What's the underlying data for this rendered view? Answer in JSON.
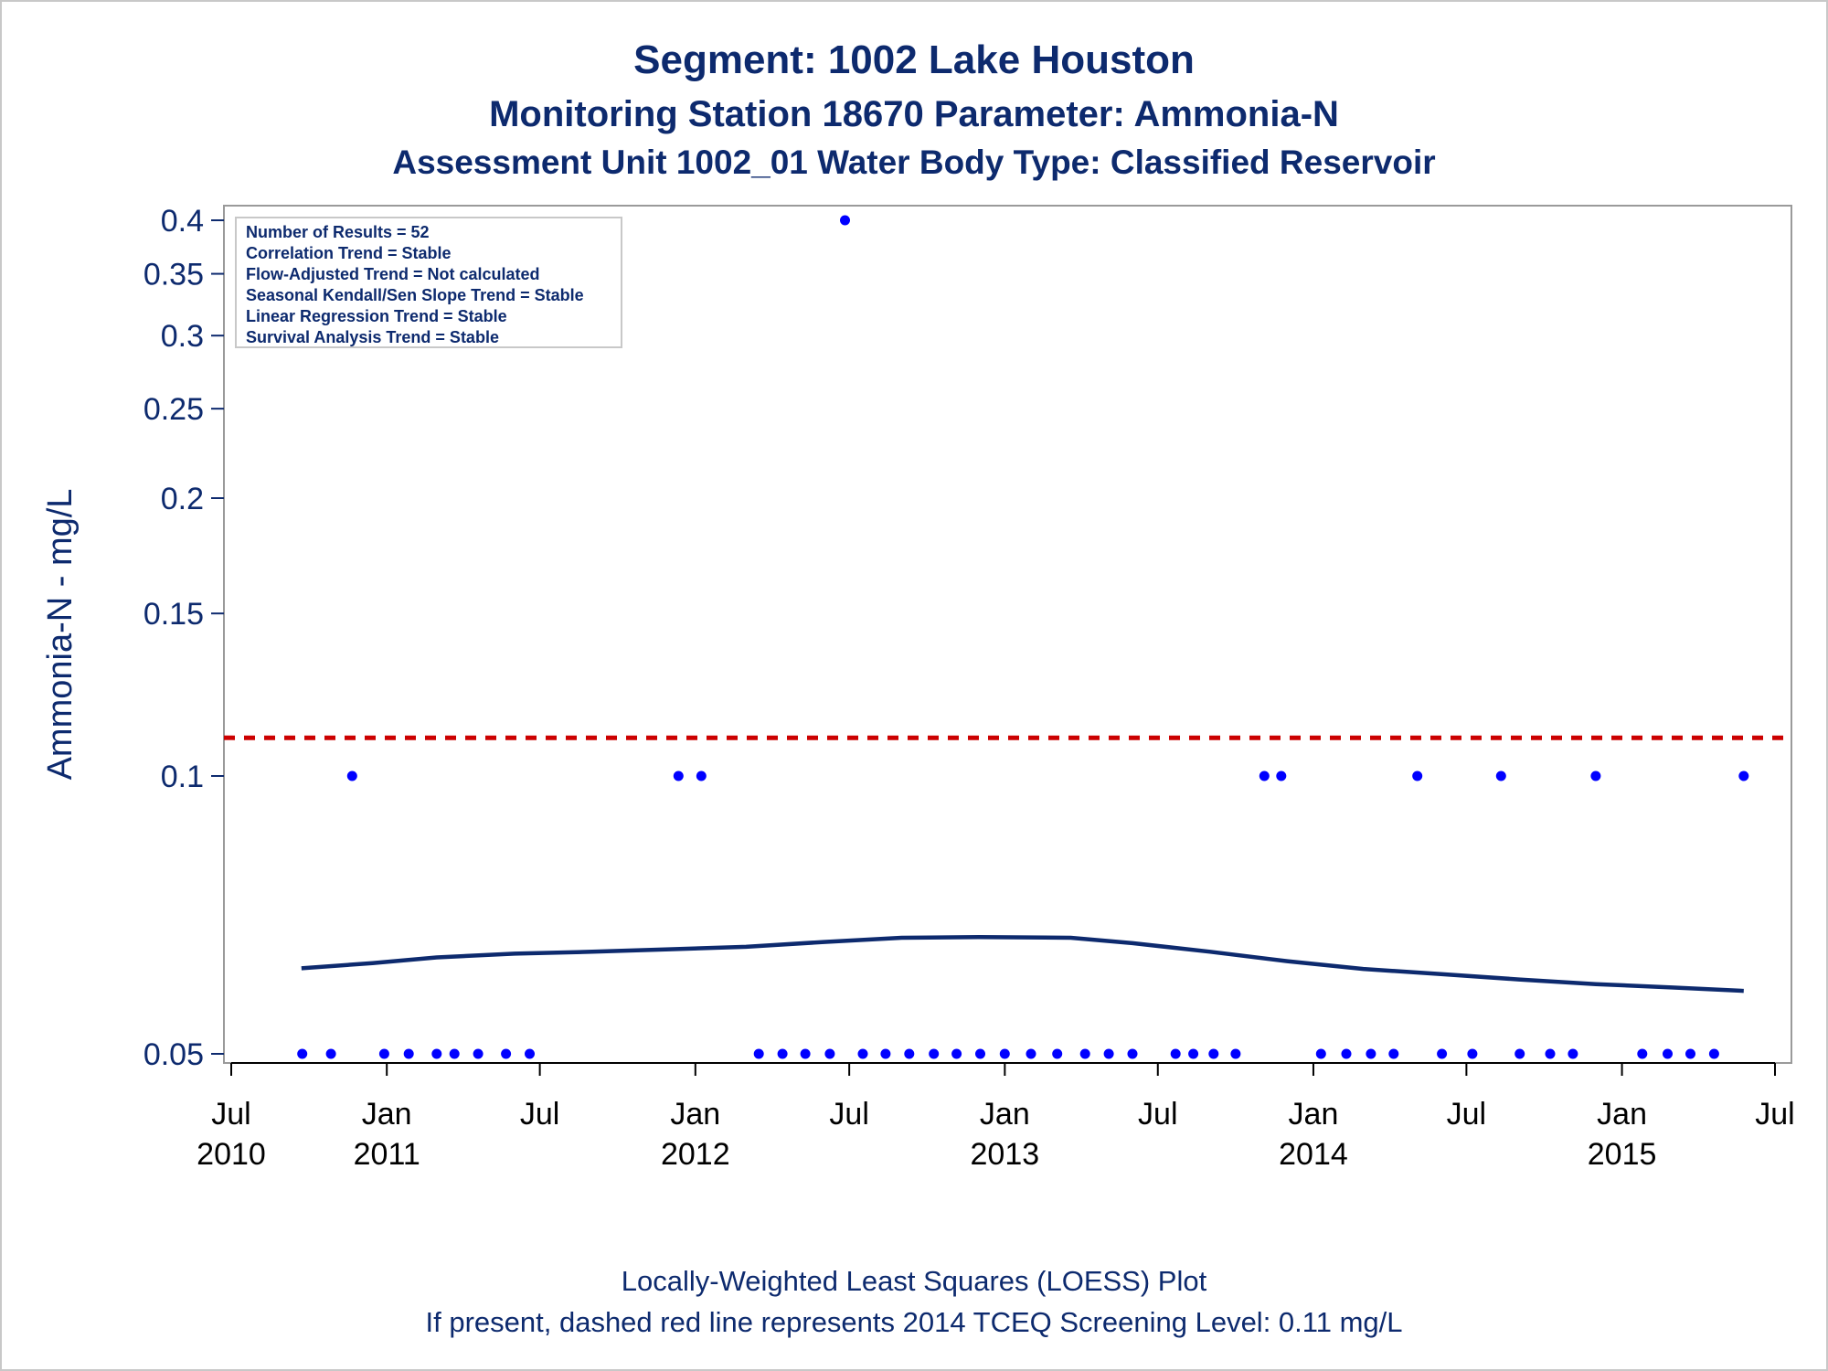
{
  "titles": {
    "line1": "Segment: 1002  Lake Houston",
    "line2": "Monitoring Station 18670 Parameter: Ammonia-N",
    "line3": "Assessment Unit 1002_01   Water Body Type: Classified Reservoir"
  },
  "stats": [
    "Number of Results = 52",
    "Correlation Trend = Stable",
    "Flow-Adjusted Trend = Not calculated",
    "Seasonal Kendall/Sen Slope Trend = Stable",
    "Linear Regression Trend = Stable",
    "Survival Analysis Trend = Stable"
  ],
  "footer": {
    "line1": "Locally-Weighted Least Squares (LOESS) Plot",
    "line2": "If present, dashed red line represents 2014 TCEQ Screening Level: 0.11 mg/L"
  },
  "colors": {
    "text": "#0d2a6e",
    "points": "#0000ff",
    "loess": "#0d2a6e",
    "screening": "#cc0000",
    "frame": "#9a9a9a"
  },
  "chart_data": {
    "type": "scatter",
    "ylabel": "Ammonia-N - mg/L",
    "yscale": "log",
    "ylim": [
      0.05,
      0.4
    ],
    "xlim": [
      "2010-07-01",
      "2015-07-01"
    ],
    "yticks": [
      {
        "value": 0.05,
        "label": "0.05"
      },
      {
        "value": 0.1,
        "label": "0.1"
      },
      {
        "value": 0.15,
        "label": "0.15"
      },
      {
        "value": 0.2,
        "label": "0.2"
      },
      {
        "value": 0.25,
        "label": "0.25"
      },
      {
        "value": 0.3,
        "label": "0.3"
      },
      {
        "value": 0.35,
        "label": "0.35"
      },
      {
        "value": 0.4,
        "label": "0.4"
      }
    ],
    "xticks": [
      {
        "date": "2010-07-01",
        "month": "Jul",
        "year": "2010"
      },
      {
        "date": "2011-01-01",
        "month": "Jan",
        "year": "2011"
      },
      {
        "date": "2011-07-01",
        "month": "Jul",
        "year": ""
      },
      {
        "date": "2012-01-01",
        "month": "Jan",
        "year": "2012"
      },
      {
        "date": "2012-07-01",
        "month": "Jul",
        "year": ""
      },
      {
        "date": "2013-01-01",
        "month": "Jan",
        "year": "2013"
      },
      {
        "date": "2013-07-01",
        "month": "Jul",
        "year": ""
      },
      {
        "date": "2014-01-01",
        "month": "Jan",
        "year": "2014"
      },
      {
        "date": "2014-07-01",
        "month": "Jul",
        "year": ""
      },
      {
        "date": "2015-01-01",
        "month": "Jan",
        "year": "2015"
      },
      {
        "date": "2015-07-01",
        "month": "Jul",
        "year": ""
      }
    ],
    "screening_level": 0.11,
    "points": [
      {
        "x": "2010-09-23",
        "y": 0.05
      },
      {
        "x": "2010-10-27",
        "y": 0.05
      },
      {
        "x": "2010-11-21",
        "y": 0.1
      },
      {
        "x": "2010-12-29",
        "y": 0.05
      },
      {
        "x": "2011-01-27",
        "y": 0.05
      },
      {
        "x": "2011-03-01",
        "y": 0.05
      },
      {
        "x": "2011-03-22",
        "y": 0.05
      },
      {
        "x": "2011-04-19",
        "y": 0.05
      },
      {
        "x": "2011-05-22",
        "y": 0.05
      },
      {
        "x": "2011-06-19",
        "y": 0.05
      },
      {
        "x": "2011-12-12",
        "y": 0.1
      },
      {
        "x": "2012-01-08",
        "y": 0.1
      },
      {
        "x": "2012-03-16",
        "y": 0.05
      },
      {
        "x": "2012-04-13",
        "y": 0.05
      },
      {
        "x": "2012-05-10",
        "y": 0.05
      },
      {
        "x": "2012-06-08",
        "y": 0.05
      },
      {
        "x": "2012-06-26",
        "y": 0.4
      },
      {
        "x": "2012-07-17",
        "y": 0.05
      },
      {
        "x": "2012-08-13",
        "y": 0.05
      },
      {
        "x": "2012-09-10",
        "y": 0.05
      },
      {
        "x": "2012-10-09",
        "y": 0.05
      },
      {
        "x": "2012-11-05",
        "y": 0.05
      },
      {
        "x": "2012-12-03",
        "y": 0.05
      },
      {
        "x": "2013-01-01",
        "y": 0.05
      },
      {
        "x": "2013-02-01",
        "y": 0.05
      },
      {
        "x": "2013-03-04",
        "y": 0.05
      },
      {
        "x": "2013-04-06",
        "y": 0.05
      },
      {
        "x": "2013-05-04",
        "y": 0.05
      },
      {
        "x": "2013-06-01",
        "y": 0.05
      },
      {
        "x": "2013-07-22",
        "y": 0.05
      },
      {
        "x": "2013-08-12",
        "y": 0.05
      },
      {
        "x": "2013-09-05",
        "y": 0.05
      },
      {
        "x": "2013-10-01",
        "y": 0.05
      },
      {
        "x": "2013-11-04",
        "y": 0.1
      },
      {
        "x": "2013-11-24",
        "y": 0.1
      },
      {
        "x": "2014-01-10",
        "y": 0.05
      },
      {
        "x": "2014-02-09",
        "y": 0.05
      },
      {
        "x": "2014-03-10",
        "y": 0.05
      },
      {
        "x": "2014-04-06",
        "y": 0.05
      },
      {
        "x": "2014-05-04",
        "y": 0.1
      },
      {
        "x": "2014-06-02",
        "y": 0.05
      },
      {
        "x": "2014-07-08",
        "y": 0.05
      },
      {
        "x": "2014-08-11",
        "y": 0.1
      },
      {
        "x": "2014-09-02",
        "y": 0.05
      },
      {
        "x": "2014-10-08",
        "y": 0.05
      },
      {
        "x": "2014-11-04",
        "y": 0.05
      },
      {
        "x": "2014-12-01",
        "y": 0.1
      },
      {
        "x": "2015-01-25",
        "y": 0.05
      },
      {
        "x": "2015-02-24",
        "y": 0.05
      },
      {
        "x": "2015-03-23",
        "y": 0.05
      },
      {
        "x": "2015-04-20",
        "y": 0.05
      },
      {
        "x": "2015-05-25",
        "y": 0.1
      }
    ],
    "loess": [
      {
        "x": "2010-09-22",
        "y": 0.0619
      },
      {
        "x": "2010-12-15",
        "y": 0.0627
      },
      {
        "x": "2011-03-01",
        "y": 0.0636
      },
      {
        "x": "2011-06-01",
        "y": 0.0642
      },
      {
        "x": "2011-09-01",
        "y": 0.0645
      },
      {
        "x": "2011-12-01",
        "y": 0.0649
      },
      {
        "x": "2012-03-01",
        "y": 0.0653
      },
      {
        "x": "2012-06-01",
        "y": 0.0661
      },
      {
        "x": "2012-09-01",
        "y": 0.0668
      },
      {
        "x": "2012-12-01",
        "y": 0.0669
      },
      {
        "x": "2013-03-20",
        "y": 0.0668
      },
      {
        "x": "2013-06-01",
        "y": 0.0659
      },
      {
        "x": "2013-09-01",
        "y": 0.0645
      },
      {
        "x": "2013-12-01",
        "y": 0.063
      },
      {
        "x": "2014-03-01",
        "y": 0.0618
      },
      {
        "x": "2014-06-01",
        "y": 0.061
      },
      {
        "x": "2014-09-01",
        "y": 0.0602
      },
      {
        "x": "2014-12-01",
        "y": 0.0595
      },
      {
        "x": "2015-03-01",
        "y": 0.059
      },
      {
        "x": "2015-05-25",
        "y": 0.0585
      }
    ]
  }
}
